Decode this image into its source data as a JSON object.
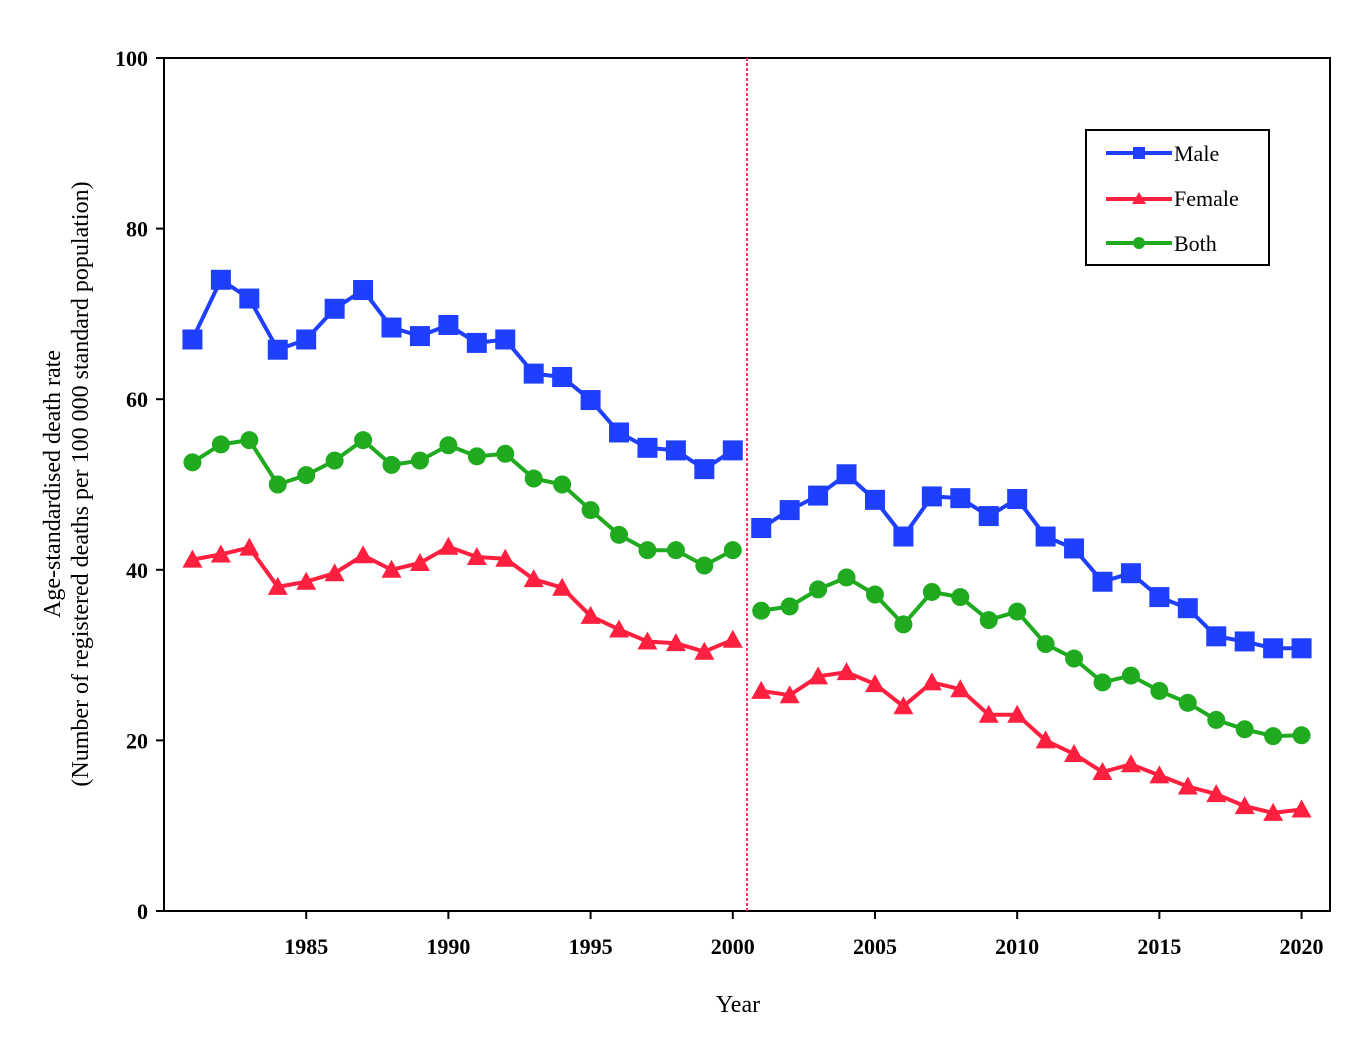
{
  "chart_data": {
    "type": "line",
    "title": "",
    "xlabel": "Year",
    "ylabel_lines": [
      "Age-standardised death rate",
      "(Number of registered deaths per 100 000 standard population)"
    ],
    "xlim": [
      1980,
      2021
    ],
    "ylim": [
      0,
      100
    ],
    "y_ticks": [
      0,
      20,
      40,
      60,
      80,
      100
    ],
    "x_ticks": [
      1985,
      1990,
      1995,
      2000,
      2005,
      2010,
      2015,
      2020
    ],
    "break_after_year": 2000,
    "grid": false,
    "legend_position": "top-right",
    "x": [
      1981,
      1982,
      1983,
      1984,
      1985,
      1986,
      1987,
      1988,
      1989,
      1990,
      1991,
      1992,
      1993,
      1994,
      1995,
      1996,
      1997,
      1998,
      1999,
      2000,
      2001,
      2002,
      2003,
      2004,
      2005,
      2006,
      2007,
      2008,
      2009,
      2010,
      2011,
      2012,
      2013,
      2014,
      2015,
      2016,
      2017,
      2018,
      2019,
      2020
    ],
    "series": [
      {
        "name": "Male",
        "color": "#1f3fff",
        "marker": "square",
        "values": [
          67.0,
          74.0,
          71.8,
          65.8,
          67.0,
          70.6,
          72.8,
          68.4,
          67.4,
          68.7,
          66.6,
          67.0,
          63.0,
          62.6,
          59.9,
          56.1,
          54.3,
          54.0,
          51.8,
          54.0,
          44.9,
          47.0,
          48.7,
          51.2,
          48.2,
          43.9,
          48.6,
          48.4,
          46.3,
          48.3,
          43.9,
          42.5,
          38.6,
          39.6,
          36.8,
          35.5,
          32.2,
          31.6,
          30.8,
          30.8
        ]
      },
      {
        "name": "Female",
        "color": "#ff1f3f",
        "marker": "triangle",
        "values": [
          41.2,
          41.8,
          42.6,
          38.0,
          38.6,
          39.6,
          41.7,
          40.0,
          40.8,
          42.7,
          41.5,
          41.3,
          38.9,
          37.9,
          34.6,
          33.0,
          31.6,
          31.4,
          30.4,
          31.8,
          25.8,
          25.3,
          27.5,
          28.0,
          26.6,
          24.0,
          26.8,
          26.0,
          23.0,
          23.0,
          20.0,
          18.4,
          16.3,
          17.2,
          15.9,
          14.6,
          13.7,
          12.3,
          11.5,
          11.9
        ]
      },
      {
        "name": "Both",
        "color": "#1faa1f",
        "marker": "circle",
        "values": [
          52.6,
          54.7,
          55.2,
          50.0,
          51.1,
          52.8,
          55.2,
          52.3,
          52.8,
          54.6,
          53.3,
          53.6,
          50.7,
          50.0,
          47.0,
          44.1,
          42.3,
          42.3,
          40.5,
          42.3,
          35.2,
          35.7,
          37.7,
          39.1,
          37.1,
          33.6,
          37.4,
          36.8,
          34.1,
          35.1,
          31.3,
          29.6,
          26.8,
          27.6,
          25.8,
          24.4,
          22.4,
          21.3,
          20.5,
          20.6
        ]
      }
    ]
  }
}
